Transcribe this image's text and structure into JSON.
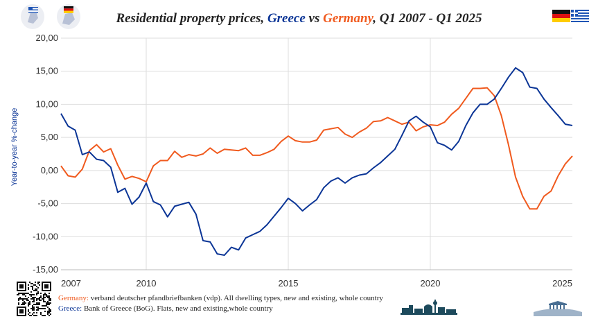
{
  "title": {
    "prefix": "Residential property prices, ",
    "greece": "Greece",
    "vs": " vs ",
    "germany": "Germany",
    "suffix": ", Q1 2007 - Q1 2025"
  },
  "colors": {
    "greece": "#0b3596",
    "germany": "#f05a1e",
    "grid": "#dddddd"
  },
  "footer": {
    "germany_label": "Germany:",
    "germany_source": " verband deutscher pfandbriefbanken (vdp). All dwelling types, new and existing, whole country",
    "greece_label": "Greece:",
    "greece_source": " Bank of Greece (BoG). Flats, new and existing,whole country"
  },
  "icons": [
    "greece-badge-icon",
    "germany-badge-icon",
    "qr-code-icon",
    "germany-flag-icon",
    "greece-flag-icon",
    "berlin-skyline-icon",
    "athens-skyline-icon"
  ],
  "chart_data": {
    "type": "line",
    "title": "Residential property prices, Greece vs Germany, Q1 2007 - Q1 2025",
    "xlabel": "",
    "ylabel": "Year-to-year %-change",
    "ylim": [
      -15,
      20
    ],
    "yticks": [
      -15,
      -10,
      -5,
      0,
      5,
      10,
      15,
      20
    ],
    "ytick_labels": [
      "-15,00",
      "-10,00",
      "-5,00",
      "0,00",
      "5,00",
      "10,00",
      "15,00",
      "20,00"
    ],
    "xticks": [
      2007,
      2010,
      2015,
      2020,
      2025
    ],
    "xtick_labels": [
      "2007",
      "2010",
      "2015",
      "2020",
      "2025"
    ],
    "grid": true,
    "legend": "none",
    "x_start": 2007.0,
    "x_step": 0.25,
    "series": [
      {
        "name": "Greece",
        "color": "#0b3596",
        "values": [
          8.6,
          6.7,
          6.1,
          2.4,
          2.8,
          1.7,
          1.5,
          0.5,
          -3.3,
          -2.7,
          -5.1,
          -4.0,
          -1.9,
          -4.7,
          -5.2,
          -7.0,
          -5.4,
          -5.1,
          -4.8,
          -6.6,
          -10.6,
          -10.8,
          -12.6,
          -12.8,
          -11.6,
          -12.0,
          -10.2,
          -9.7,
          -9.2,
          -8.2,
          -6.9,
          -5.6,
          -4.2,
          -5.0,
          -6.1,
          -5.2,
          -4.4,
          -2.6,
          -1.6,
          -1.1,
          -1.9,
          -1.1,
          -0.7,
          -0.5,
          0.4,
          1.2,
          2.2,
          3.2,
          5.3,
          7.5,
          8.2,
          7.3,
          6.6,
          4.2,
          3.8,
          3.1,
          4.4,
          6.8,
          8.7,
          10.0,
          10.0,
          10.8,
          12.4,
          14.1,
          15.5,
          14.8,
          12.6,
          12.4,
          10.8,
          9.5,
          8.3,
          7.0,
          6.8
        ]
      },
      {
        "name": "Germany",
        "color": "#f05a1e",
        "values": [
          0.7,
          -0.8,
          -1.0,
          0.2,
          3.0,
          3.9,
          2.8,
          3.3,
          0.8,
          -1.3,
          -0.9,
          -1.2,
          -1.7,
          0.7,
          1.5,
          1.5,
          2.9,
          2.0,
          2.4,
          2.2,
          2.5,
          3.4,
          2.6,
          3.2,
          3.1,
          3.0,
          3.4,
          2.3,
          2.3,
          2.7,
          3.2,
          4.4,
          5.2,
          4.5,
          4.3,
          4.3,
          4.6,
          6.1,
          6.3,
          6.5,
          5.5,
          5.0,
          5.8,
          6.4,
          7.4,
          7.5,
          8.0,
          7.5,
          7.0,
          7.3,
          6.0,
          6.6,
          6.9,
          6.8,
          7.3,
          8.5,
          9.4,
          10.9,
          12.4,
          12.4,
          12.5,
          11.3,
          8.3,
          3.9,
          -1.0,
          -3.9,
          -5.8,
          -5.8,
          -3.9,
          -3.1,
          -0.8,
          1.0,
          2.2
        ]
      }
    ]
  }
}
